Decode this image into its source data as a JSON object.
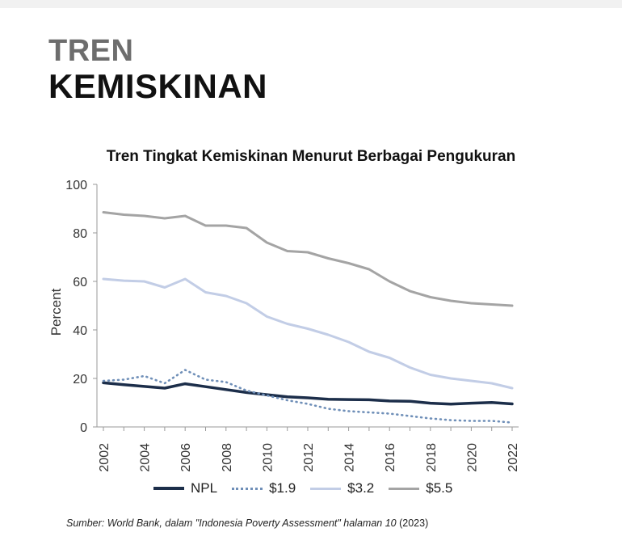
{
  "header": {
    "line1": "TREN",
    "line2": "KEMISKINAN"
  },
  "chart_data": {
    "type": "line",
    "title": "Tren Tingkat Kemiskinan Menurut Berbagai Pengukuran",
    "xlabel": "",
    "ylabel": "Percent",
    "ylim": [
      0,
      100
    ],
    "yticks": [
      0,
      20,
      40,
      60,
      80,
      100
    ],
    "xticks": [
      2002,
      2004,
      2006,
      2008,
      2010,
      2012,
      2014,
      2016,
      2018,
      2020,
      2022
    ],
    "x": [
      2002,
      2003,
      2004,
      2005,
      2006,
      2007,
      2008,
      2009,
      2010,
      2011,
      2012,
      2013,
      2014,
      2015,
      2016,
      2017,
      2018,
      2019,
      2020,
      2021,
      2022
    ],
    "grid": false,
    "legend_position": "bottom",
    "series": [
      {
        "name": "NPL",
        "color": "#1c2e4a",
        "style": "solid",
        "values": [
          18.2,
          17.4,
          16.7,
          16.0,
          17.8,
          16.6,
          15.4,
          14.2,
          13.3,
          12.4,
          12.0,
          11.4,
          11.3,
          11.2,
          10.7,
          10.6,
          9.8,
          9.4,
          9.8,
          10.1,
          9.5
        ]
      },
      {
        "name": "$1.9",
        "color": "#6f8fb8",
        "style": "dotted",
        "values": [
          19.0,
          19.5,
          21.0,
          18.0,
          23.5,
          19.5,
          18.5,
          15.0,
          13.0,
          11.0,
          9.5,
          7.5,
          6.5,
          6.0,
          5.5,
          4.5,
          3.5,
          2.8,
          2.5,
          2.5,
          1.8
        ]
      },
      {
        "name": "$3.2",
        "color": "#c2cde6",
        "style": "solid",
        "values": [
          61.0,
          60.3,
          60.0,
          57.5,
          61.0,
          55.5,
          54.0,
          51.0,
          45.5,
          42.5,
          40.5,
          38.0,
          35.0,
          31.0,
          28.5,
          24.5,
          21.5,
          20.0,
          19.0,
          18.0,
          16.0
        ]
      },
      {
        "name": "$5.5",
        "color": "#a4a4a4",
        "style": "solid",
        "values": [
          88.5,
          87.5,
          87.0,
          86.0,
          87.0,
          83.0,
          83.0,
          82.0,
          76.0,
          72.5,
          72.0,
          69.5,
          67.5,
          65.0,
          60.0,
          56.0,
          53.5,
          52.0,
          51.0,
          50.5,
          50.0
        ]
      }
    ]
  },
  "source": {
    "text": "Sumber: World Bank, dalam \"Indonesia Poverty Assessment\"  halaman 10",
    "year": "(2023)"
  }
}
